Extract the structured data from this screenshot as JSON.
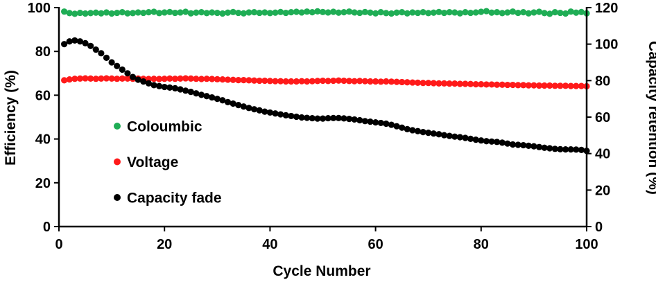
{
  "chart_data": {
    "type": "scatter",
    "xlabel": "Cycle Number",
    "ylabel": "Efficiency (%)",
    "y2label": "Capacity retention (%)",
    "xlim": [
      0,
      100
    ],
    "ylim": [
      0,
      100
    ],
    "y2lim": [
      0,
      120
    ],
    "xticks": [
      "0",
      "20",
      "40",
      "60",
      "80",
      "100"
    ],
    "yticks": [
      "0",
      "20",
      "40",
      "60",
      "80",
      "100"
    ],
    "y2ticks": [
      "0",
      "20",
      "40",
      "60",
      "80",
      "100",
      "120"
    ],
    "x": [
      1,
      2,
      3,
      4,
      5,
      6,
      7,
      8,
      9,
      10,
      11,
      12,
      13,
      14,
      15,
      16,
      17,
      18,
      19,
      20,
      21,
      22,
      23,
      24,
      25,
      26,
      27,
      28,
      29,
      30,
      31,
      32,
      33,
      34,
      35,
      36,
      37,
      38,
      39,
      40,
      41,
      42,
      43,
      44,
      45,
      46,
      47,
      48,
      49,
      50,
      51,
      52,
      53,
      54,
      55,
      56,
      57,
      58,
      59,
      60,
      61,
      62,
      63,
      64,
      65,
      66,
      67,
      68,
      69,
      70,
      71,
      72,
      73,
      74,
      75,
      76,
      77,
      78,
      79,
      80,
      81,
      82,
      83,
      84,
      85,
      86,
      87,
      88,
      89,
      90,
      91,
      92,
      93,
      94,
      95,
      96,
      97,
      98,
      99,
      100
    ],
    "series": [
      {
        "name": "Coloumbic",
        "axis": "left",
        "color": "#1fad55",
        "values": [
          98.2,
          97.5,
          97.2,
          97.6,
          97.3,
          97.5,
          97.7,
          97.4,
          97.8,
          97.3,
          97.6,
          97.9,
          97.4,
          97.5,
          97.8,
          97.6,
          97.9,
          98.1,
          97.5,
          97.8,
          98.0,
          97.6,
          97.8,
          98.1,
          97.4,
          97.7,
          97.9,
          97.5,
          97.8,
          97.6,
          97.3,
          97.7,
          98.0,
          97.6,
          97.4,
          97.8,
          97.9,
          97.6,
          97.8,
          97.5,
          97.7,
          98.0,
          97.6,
          97.9,
          98.1,
          97.8,
          98.2,
          97.9,
          98.3,
          98.0,
          97.8,
          98.1,
          97.7,
          97.9,
          98.2,
          97.8,
          97.6,
          98.0,
          97.7,
          97.4,
          97.9,
          97.5,
          97.3,
          97.7,
          97.9,
          97.4,
          97.8,
          97.6,
          97.9,
          97.5,
          97.7,
          98.0,
          97.6,
          97.9,
          97.8,
          97.4,
          97.9,
          97.6,
          97.8,
          98.1,
          98.4,
          97.7,
          97.9,
          97.5,
          97.8,
          98.2,
          97.6,
          97.9,
          97.4,
          97.8,
          98.1,
          97.5,
          97.2,
          97.9,
          97.6,
          97.3,
          98.2,
          97.7,
          98.0,
          97.4
        ]
      },
      {
        "name": "Voltage",
        "axis": "left",
        "color": "#ff1a1a",
        "values": [
          66.8,
          67.2,
          67.5,
          67.6,
          67.7,
          67.6,
          67.5,
          67.6,
          67.7,
          67.6,
          67.5,
          67.6,
          67.6,
          67.5,
          67.6,
          67.5,
          67.4,
          67.5,
          67.4,
          67.5,
          67.6,
          67.5,
          67.6,
          67.7,
          67.6,
          67.5,
          67.4,
          67.5,
          67.4,
          67.3,
          67.2,
          67.1,
          67.0,
          66.9,
          66.9,
          66.8,
          66.7,
          66.6,
          66.6,
          66.5,
          66.4,
          66.4,
          66.3,
          66.3,
          66.3,
          66.4,
          66.3,
          66.4,
          66.5,
          66.6,
          66.5,
          66.6,
          66.7,
          66.6,
          66.5,
          66.4,
          66.5,
          66.4,
          66.3,
          66.3,
          66.2,
          66.3,
          66.2,
          66.1,
          66.0,
          65.9,
          65.8,
          65.7,
          65.6,
          65.6,
          65.5,
          65.4,
          65.4,
          65.3,
          65.3,
          65.2,
          65.2,
          65.1,
          65.0,
          65.0,
          64.9,
          64.9,
          64.8,
          64.8,
          64.7,
          64.7,
          64.6,
          64.6,
          64.5,
          64.5,
          64.4,
          64.4,
          64.4,
          64.3,
          64.3,
          64.3,
          64.2,
          64.2,
          64.2,
          64.1
        ]
      },
      {
        "name": "Capacity fade",
        "axis": "right",
        "color": "#000000",
        "values": [
          100.0,
          101.5,
          102.0,
          101.5,
          100.5,
          99.0,
          97.0,
          95.0,
          92.5,
          90.0,
          88.0,
          86.0,
          84.0,
          82.0,
          80.5,
          79.5,
          78.5,
          77.5,
          77.0,
          76.5,
          76.2,
          75.8,
          75.2,
          74.5,
          73.8,
          73.0,
          72.2,
          71.5,
          70.8,
          70.0,
          69.2,
          68.2,
          67.4,
          66.6,
          65.8,
          65.0,
          64.3,
          63.7,
          63.0,
          62.5,
          62.0,
          61.5,
          61.0,
          60.6,
          60.2,
          59.8,
          59.6,
          59.4,
          59.2,
          59.2,
          59.4,
          59.5,
          59.5,
          59.3,
          59.0,
          58.7,
          58.3,
          57.8,
          57.5,
          57.1,
          56.8,
          56.4,
          55.8,
          55.0,
          54.2,
          53.4,
          52.8,
          52.3,
          51.8,
          51.4,
          51.0,
          50.6,
          50.1,
          49.7,
          49.3,
          49.0,
          48.6,
          48.1,
          47.6,
          47.2,
          46.8,
          46.6,
          46.4,
          46.0,
          45.5,
          45.0,
          44.8,
          44.6,
          44.3,
          44.0,
          43.6,
          43.2,
          42.9,
          42.6,
          42.4,
          42.3,
          42.3,
          42.2,
          42.0,
          41.5
        ]
      }
    ],
    "legend": [
      {
        "label": "Coloumbic",
        "color": "#1fad55"
      },
      {
        "label": "Voltage",
        "color": "#ff1a1a"
      },
      {
        "label": "Capacity fade",
        "color": "#000000"
      }
    ],
    "grid": false
  }
}
